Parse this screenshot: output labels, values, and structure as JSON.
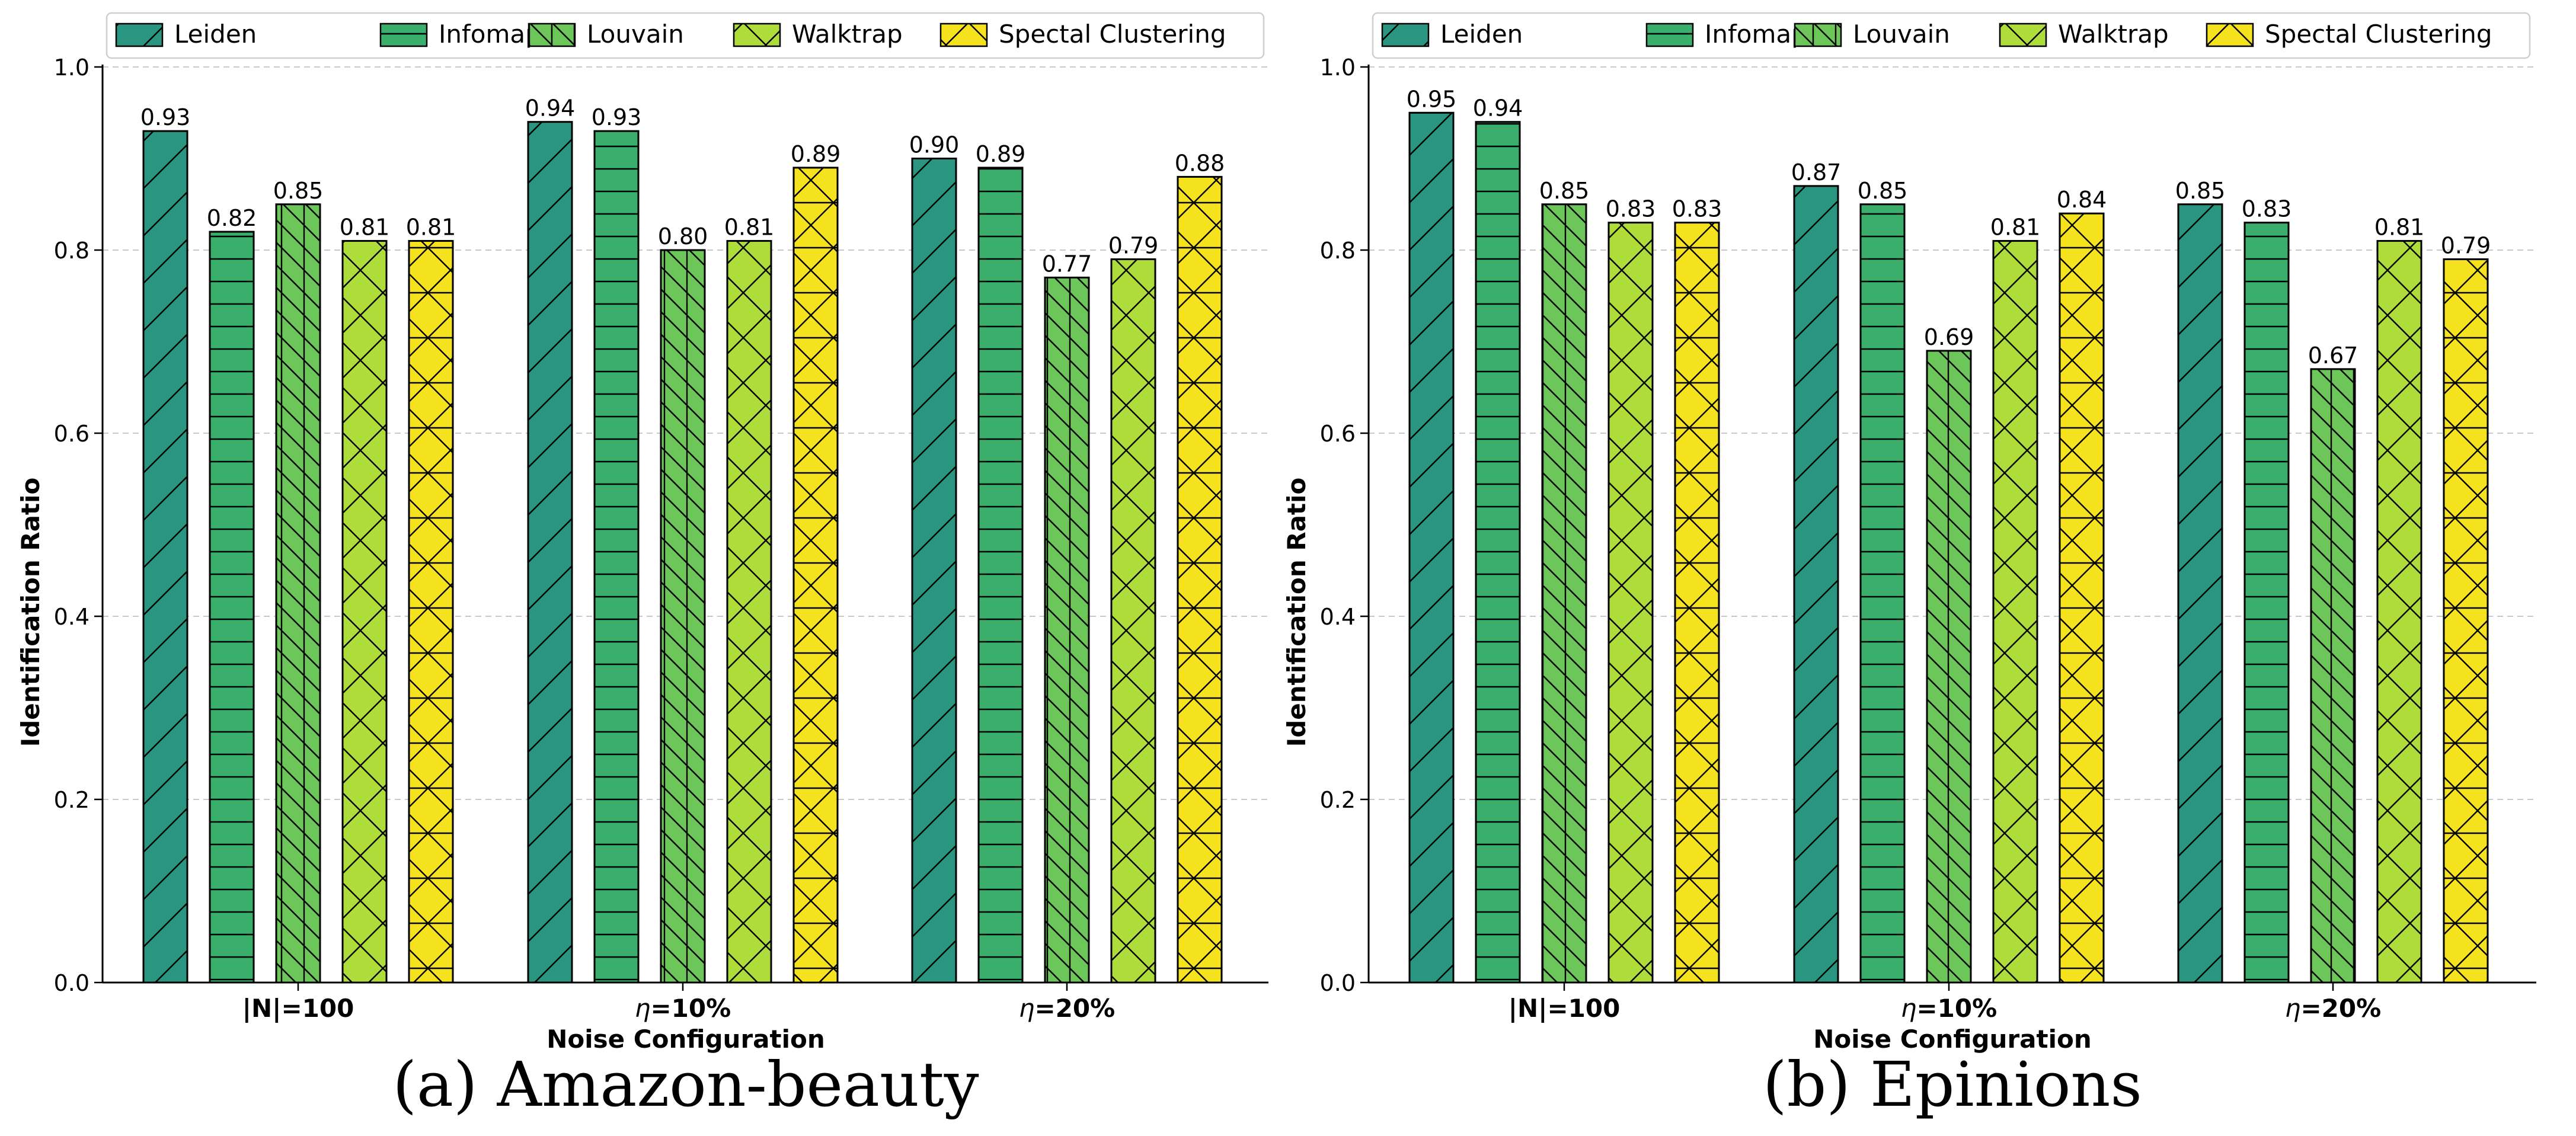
{
  "chart_data": [
    {
      "type": "bar",
      "caption": "(a) Amazon-beauty",
      "xlabel": "Noise Configuration",
      "ylabel": "Identification Ratio",
      "ylim": [
        0,
        1.0
      ],
      "yticks": [
        "0.0",
        "0.2",
        "0.4",
        "0.6",
        "0.8",
        "1.0"
      ],
      "grid": "y-dashed",
      "legend_position": "top",
      "categories": [
        "|N|=100",
        "η=10%",
        "η=20%"
      ],
      "series": [
        {
          "name": "Leiden",
          "values": [
            0.93,
            0.94,
            0.9
          ],
          "labels": [
            "0.93",
            "0.94",
            "0.90"
          ]
        },
        {
          "name": "Infomap",
          "values": [
            0.82,
            0.93,
            0.89
          ],
          "labels": [
            "0.82",
            "0.93",
            "0.89"
          ]
        },
        {
          "name": "Louvain",
          "values": [
            0.85,
            0.8,
            0.77
          ],
          "labels": [
            "0.85",
            "0.80",
            "0.77"
          ]
        },
        {
          "name": "Walktrap",
          "values": [
            0.81,
            0.81,
            0.79
          ],
          "labels": [
            "0.81",
            "0.81",
            "0.79"
          ]
        },
        {
          "name": "Spectal Clustering",
          "values": [
            0.81,
            0.89,
            0.88
          ],
          "labels": [
            "0.81",
            "0.89",
            "0.88"
          ]
        }
      ]
    },
    {
      "type": "bar",
      "caption": "(b) Epinions",
      "xlabel": "Noise Configuration",
      "ylabel": "Identification Ratio",
      "ylim": [
        0,
        1.0
      ],
      "yticks": [
        "0.0",
        "0.2",
        "0.4",
        "0.6",
        "0.8",
        "1.0"
      ],
      "grid": "y-dashed",
      "legend_position": "top",
      "categories": [
        "|N|=100",
        "η=10%",
        "η=20%"
      ],
      "series": [
        {
          "name": "Leiden",
          "values": [
            0.95,
            0.87,
            0.85
          ],
          "labels": [
            "0.95",
            "0.87",
            "0.85"
          ]
        },
        {
          "name": "Infomap",
          "values": [
            0.94,
            0.85,
            0.83
          ],
          "labels": [
            "0.94",
            "0.85",
            "0.83"
          ]
        },
        {
          "name": "Louvain",
          "values": [
            0.85,
            0.69,
            0.67
          ],
          "labels": [
            "0.85",
            "0.69",
            "0.67"
          ]
        },
        {
          "name": "Walktrap",
          "values": [
            0.83,
            0.81,
            0.81
          ],
          "labels": [
            "0.83",
            "0.81",
            "0.81"
          ]
        },
        {
          "name": "Spectal Clustering",
          "values": [
            0.83,
            0.84,
            0.79
          ],
          "labels": [
            "0.83",
            "0.84",
            "0.79"
          ]
        }
      ]
    }
  ],
  "series_style": [
    {
      "name": "Leiden",
      "color": "#2a9580",
      "hatch": "diagonal-forward"
    },
    {
      "name": "Infomap",
      "color": "#3aaf6b",
      "hatch": "horizontal"
    },
    {
      "name": "Louvain",
      "color": "#6cc65a",
      "hatch": "diagonal-back-vertical"
    },
    {
      "name": "Walktrap",
      "color": "#aedc3a",
      "hatch": "cross"
    },
    {
      "name": "Spectal Clustering",
      "color": "#f5e21f",
      "hatch": "cross-horizontal"
    }
  ]
}
